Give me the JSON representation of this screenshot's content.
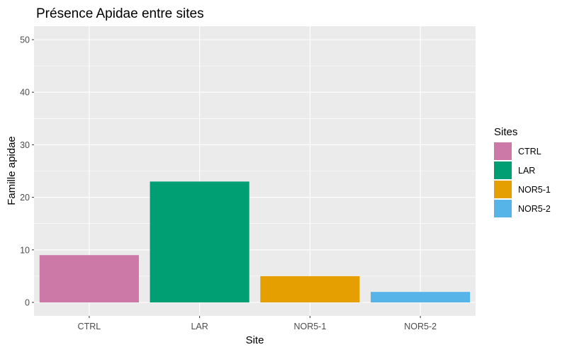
{
  "chart_data": {
    "type": "bar",
    "title": "Présence Apidae entre sites",
    "xlabel": "Site",
    "ylabel": "Famille apidae",
    "categories": [
      "CTRL",
      "LAR",
      "NOR5-1",
      "NOR5-2"
    ],
    "values": [
      9,
      23,
      5,
      2
    ],
    "colors": [
      "#CC79A7",
      "#009E73",
      "#E69F00",
      "#56B4E9"
    ],
    "ylim": [
      0,
      50
    ],
    "yticks": [
      0,
      10,
      20,
      30,
      40,
      50
    ],
    "grid": true,
    "panel_background": "#EBEBEB",
    "legend": {
      "title": "Sites",
      "position": "right",
      "entries": [
        "CTRL",
        "LAR",
        "NOR5-1",
        "NOR5-2"
      ]
    }
  }
}
